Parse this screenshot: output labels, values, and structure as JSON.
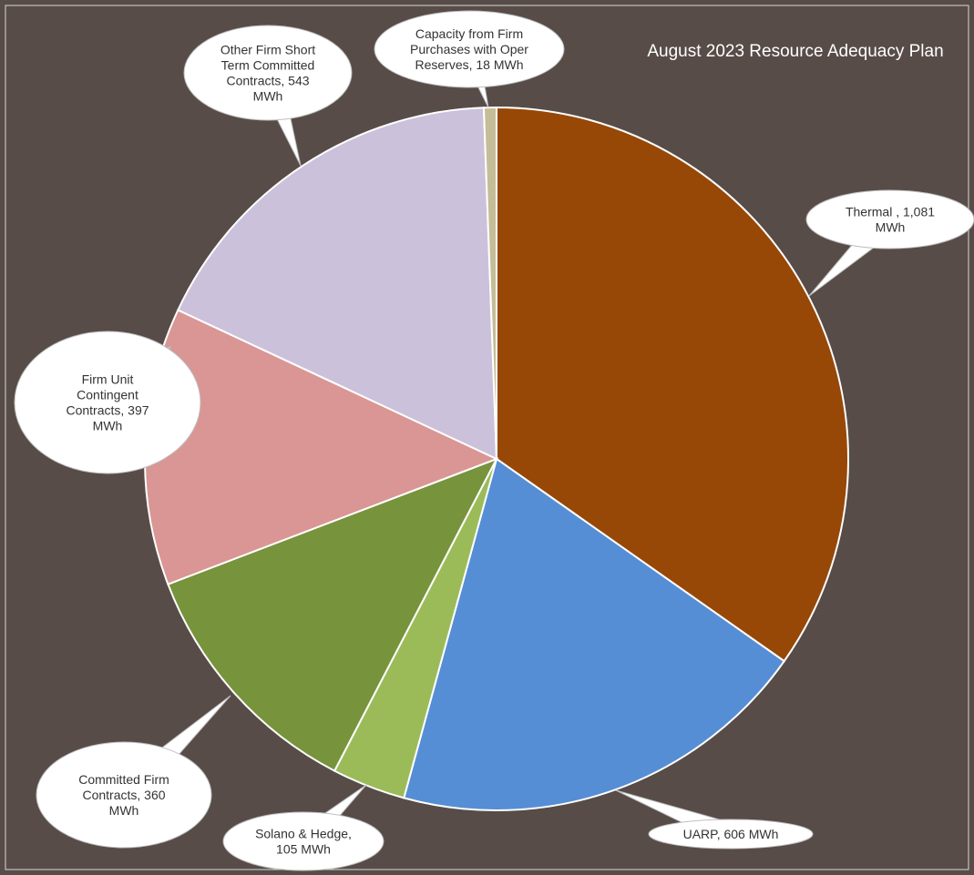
{
  "chart_data": {
    "type": "pie",
    "title": "August 2023 Resource Adequacy Plan",
    "unit": "MWh",
    "slices": [
      {
        "label": "Thermal , 1,081 MWh",
        "lines": [
          "Thermal  , 1,081",
          "MWh"
        ],
        "category": "Thermal",
        "value": 1081,
        "color": "#974806"
      },
      {
        "label": "UARP, 606 MWh",
        "lines": [
          "UARP, 606 MWh"
        ],
        "category": "UARP",
        "value": 606,
        "color": "#558ed5"
      },
      {
        "label": "Solano & Hedge, 105 MWh",
        "lines": [
          "Solano & Hedge,",
          "105 MWh"
        ],
        "category": "Solano & Hedge",
        "value": 105,
        "color": "#9bbb59"
      },
      {
        "label": "Committed Firm Contracts, 360 MWh",
        "lines": [
          "Committed Firm",
          "Contracts, 360",
          "MWh"
        ],
        "category": "Committed Firm Contracts",
        "value": 360,
        "color": "#77933c"
      },
      {
        "label": "Firm Unit Contingent Contracts, 397 MWh",
        "lines": [
          "Firm Unit",
          "Contingent",
          "Contracts, 397",
          "MWh"
        ],
        "category": "Firm Unit Contingent Contracts",
        "value": 397,
        "color": "#d99694"
      },
      {
        "label": "Other Firm Short Term Committed Contracts, 543 MWh",
        "lines": [
          "Other Firm Short",
          "Term Committed",
          "Contracts, 543",
          "MWh"
        ],
        "category": "Other Firm Short Term Committed Contracts",
        "value": 543,
        "color": "#ccc1da"
      },
      {
        "label": "Capacity from Firm Purchases with Oper Reserves, 18 MWh",
        "lines": [
          "Capacity from Firm",
          "Purchases with Oper",
          "Reserves, 18 MWh"
        ],
        "category": "Capacity from Firm Purchases with Oper Reserves",
        "value": 18,
        "color": "#c4bd97"
      }
    ],
    "legend": "none",
    "data_labels": "callouts"
  },
  "colors": {
    "background": "#574c48",
    "frame_border": "#d9d9d9",
    "slice_border": "#ffffff",
    "callout_fill": "#ffffff",
    "callout_text": "#333333",
    "title": "#ffffff"
  }
}
